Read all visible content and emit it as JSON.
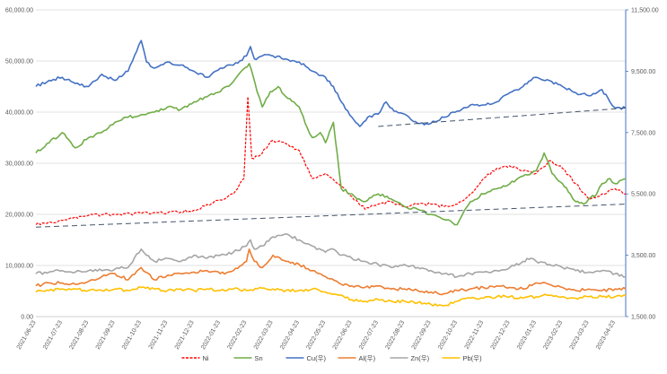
{
  "chart_data": {
    "type": "line",
    "title": "",
    "y_left": {
      "min": 0,
      "max": 60000,
      "step": 10000,
      "tick_labels": [
        "0.00",
        "10,000.00",
        "20,000.00",
        "30,000.00",
        "40,000.00",
        "50,000.00",
        "60,000.00"
      ]
    },
    "y_right": {
      "min": 1500,
      "max": 11500,
      "step": 2000,
      "tick_labels": [
        "1,500.00",
        "3,500.00",
        "5,500.00",
        "7,500.00",
        "9,500.00",
        "11,500.00"
      ]
    },
    "x_labels": [
      "2021-06-23",
      "2021-07-23",
      "2021-08-23",
      "2021-09-23",
      "2021-10-23",
      "2021-11-23",
      "2021-12-23",
      "2022-01-23",
      "2022-02-23",
      "2022-03-23",
      "2022-04-23",
      "2022-05-23",
      "2022-06-23",
      "2022-07-23",
      "2022-08-23",
      "2022-09-23",
      "2022-10-23",
      "2022-11-23",
      "2022-12-23",
      "2023-01-23",
      "2023-02-23",
      "2023-03-23",
      "2023-04-23"
    ],
    "x_range": [
      0,
      22.4
    ],
    "grid": true,
    "legend_position": "bottom",
    "series": [
      {
        "name": "Ni",
        "axis": "left",
        "color": "#ff0000",
        "dash": true,
        "x": [
          0,
          1,
          2,
          3,
          4,
          5,
          6,
          7,
          7.5,
          7.9,
          8.05,
          8.2,
          8.5,
          9,
          9.5,
          10,
          10.5,
          11,
          11.5,
          12,
          12.5,
          13,
          13.5,
          14,
          14.5,
          15,
          15.5,
          16,
          16.5,
          17,
          17.5,
          18,
          18.5,
          19,
          19.5,
          20,
          20.5,
          21,
          21.5,
          22,
          22.4
        ],
        "values": [
          18000,
          18800,
          19800,
          20000,
          20200,
          20300,
          20800,
          22800,
          24000,
          27000,
          43000,
          31000,
          31500,
          34500,
          33800,
          32500,
          27000,
          28000,
          26000,
          23500,
          21000,
          22000,
          22500,
          21500,
          22000,
          22000,
          21500,
          22000,
          24000,
          27000,
          29000,
          29500,
          28500,
          28000,
          30500,
          29000,
          26000,
          23000,
          24000,
          25000,
          24000
        ]
      },
      {
        "name": "Sn",
        "axis": "left",
        "color": "#70ad47",
        "dash": false,
        "x": [
          0,
          0.5,
          1,
          1.5,
          2,
          2.5,
          3,
          3.5,
          4,
          4.5,
          5,
          5.5,
          6,
          6.5,
          7,
          7.5,
          7.8,
          8.1,
          8.4,
          8.6,
          8.9,
          9.2,
          9.5,
          9.8,
          10,
          10.3,
          10.5,
          10.8,
          11,
          11.3,
          11.6,
          12,
          12.2,
          12.5,
          13,
          13.5,
          14,
          14.5,
          15,
          15.5,
          16,
          16.2,
          16.5,
          17,
          17.5,
          18,
          18.5,
          19,
          19.3,
          19.6,
          20,
          20.3,
          20.5,
          20.8,
          21,
          21.3,
          21.5,
          21.8,
          22,
          22.4
        ],
        "values": [
          32000,
          34000,
          36000,
          33000,
          35000,
          36000,
          38000,
          39000,
          39500,
          40000,
          41000,
          40500,
          42000,
          43000,
          44000,
          46000,
          48000,
          49500,
          44000,
          41000,
          44000,
          45000,
          43000,
          42000,
          41000,
          37000,
          35000,
          36000,
          34000,
          38000,
          25000,
          24000,
          23000,
          22500,
          24000,
          23000,
          21500,
          21000,
          20000,
          19000,
          18000,
          20000,
          22500,
          24000,
          25000,
          26000,
          27500,
          28500,
          32000,
          28000,
          26000,
          24000,
          22500,
          22000,
          23000,
          24000,
          26000,
          27000,
          26000,
          27000
        ]
      },
      {
        "name": "Cu(우)",
        "axis": "right",
        "color": "#4472c4",
        "dash": false,
        "x": [
          0,
          0.5,
          1,
          1.5,
          2,
          2.5,
          3,
          3.5,
          4,
          4.2,
          4.5,
          5,
          5.5,
          6,
          6.5,
          7,
          7.5,
          8,
          8.15,
          8.3,
          8.6,
          9,
          9.5,
          10,
          10.5,
          11,
          11.3,
          11.6,
          12,
          12.3,
          12.6,
          13,
          13.3,
          13.6,
          14,
          14.5,
          15,
          15.5,
          16,
          16.5,
          17,
          17.5,
          18,
          18.5,
          18.8,
          19,
          19.5,
          20,
          20.5,
          21,
          21.5,
          21.8,
          22,
          22.4
        ],
        "values": [
          9000,
          9200,
          9300,
          9100,
          9000,
          9400,
          9200,
          9500,
          10500,
          9800,
          9600,
          9800,
          9700,
          9500,
          9300,
          9600,
          9700,
          10000,
          10300,
          9900,
          10000,
          10000,
          9900,
          9800,
          9500,
          9300,
          9000,
          8500,
          8000,
          7700,
          8000,
          8100,
          8500,
          8200,
          8100,
          7800,
          7800,
          8000,
          8200,
          8400,
          8400,
          8500,
          8800,
          9000,
          9200,
          9300,
          9200,
          9000,
          8800,
          8700,
          8900,
          8500,
          8300,
          8300
        ]
      },
      {
        "name": "Al(우)",
        "axis": "right",
        "color": "#ed7d31",
        "dash": false,
        "x": [
          0,
          0.5,
          1,
          1.5,
          2,
          2.5,
          3,
          3.5,
          4,
          4.5,
          5,
          5.5,
          6,
          6.5,
          7,
          7.5,
          8,
          8.1,
          8.3,
          8.6,
          9,
          9.5,
          10,
          10.5,
          11,
          11.5,
          12,
          12.5,
          13,
          13.5,
          14,
          14.5,
          15,
          15.5,
          16,
          16.5,
          17,
          17.5,
          18,
          18.5,
          19,
          19.5,
          20,
          20.5,
          21,
          21.5,
          22,
          22.4
        ],
        "values": [
          2500,
          2600,
          2600,
          2550,
          2650,
          2800,
          2900,
          2700,
          3100,
          2700,
          2850,
          2900,
          2950,
          3000,
          2900,
          3000,
          3300,
          3700,
          3300,
          3100,
          3500,
          3300,
          3200,
          3000,
          2800,
          2600,
          2500,
          2450,
          2500,
          2400,
          2400,
          2350,
          2300,
          2250,
          2350,
          2400,
          2450,
          2500,
          2450,
          2400,
          2600,
          2550,
          2450,
          2350,
          2400,
          2350,
          2400,
          2400
        ]
      },
      {
        "name": "Zn(우)",
        "axis": "right",
        "color": "#a5a5a5",
        "dash": false,
        "x": [
          0,
          0.5,
          1,
          1.5,
          2,
          2.5,
          3,
          3.5,
          4,
          4.2,
          4.5,
          5,
          5.5,
          6,
          6.5,
          7,
          7.5,
          8,
          8.15,
          8.3,
          8.6,
          9,
          9.5,
          10,
          10.5,
          11,
          11.3,
          11.6,
          12,
          12.5,
          13,
          13.5,
          14,
          14.5,
          15,
          15.5,
          16,
          16.5,
          17,
          17.5,
          18,
          18.5,
          18.8,
          19,
          19.5,
          20,
          20.5,
          21,
          21.5,
          22,
          22.4
        ],
        "values": [
          2900,
          2950,
          3000,
          2950,
          3000,
          3000,
          3050,
          3100,
          3700,
          3500,
          3300,
          3400,
          3300,
          3500,
          3400,
          3500,
          3600,
          3800,
          4000,
          3700,
          3800,
          4100,
          4200,
          4000,
          3800,
          3600,
          3700,
          3500,
          3400,
          3300,
          3200,
          3100,
          3200,
          3100,
          3000,
          2900,
          2800,
          2900,
          2950,
          3000,
          3100,
          3300,
          3400,
          3300,
          3200,
          3100,
          3000,
          2950,
          3000,
          2900,
          2800
        ]
      },
      {
        "name": "Pb(우)",
        "axis": "right",
        "color": "#ffc000",
        "dash": false,
        "x": [
          0,
          0.5,
          1,
          1.5,
          2,
          2.5,
          3,
          3.5,
          4,
          4.5,
          5,
          5.5,
          6,
          6.5,
          7,
          7.5,
          8,
          8.5,
          9,
          9.5,
          10,
          10.5,
          11,
          11.5,
          12,
          12.5,
          13,
          13.5,
          14,
          14.5,
          15,
          15.5,
          16,
          16.5,
          17,
          17.5,
          18,
          18.5,
          19,
          19.5,
          20,
          20.5,
          21,
          21.5,
          22,
          22.4
        ],
        "values": [
          2300,
          2350,
          2400,
          2400,
          2350,
          2350,
          2400,
          2350,
          2450,
          2400,
          2350,
          2400,
          2350,
          2400,
          2350,
          2400,
          2350,
          2450,
          2400,
          2350,
          2350,
          2400,
          2300,
          2200,
          2050,
          2000,
          2050,
          2000,
          2000,
          1950,
          1900,
          1850,
          2000,
          2100,
          2100,
          2150,
          2150,
          2100,
          2150,
          2200,
          2150,
          2100,
          2150,
          2150,
          2150,
          2200
        ]
      }
    ],
    "trendlines": [
      {
        "target": "Cu(우)",
        "axis": "right",
        "color": "#44546a",
        "x": [
          13,
          22.4
        ],
        "values": [
          7700,
          8300
        ]
      },
      {
        "target": "Ni",
        "axis": "left",
        "color": "#44546a",
        "x": [
          0,
          22.4
        ],
        "values": [
          17500,
          22000
        ]
      }
    ]
  }
}
